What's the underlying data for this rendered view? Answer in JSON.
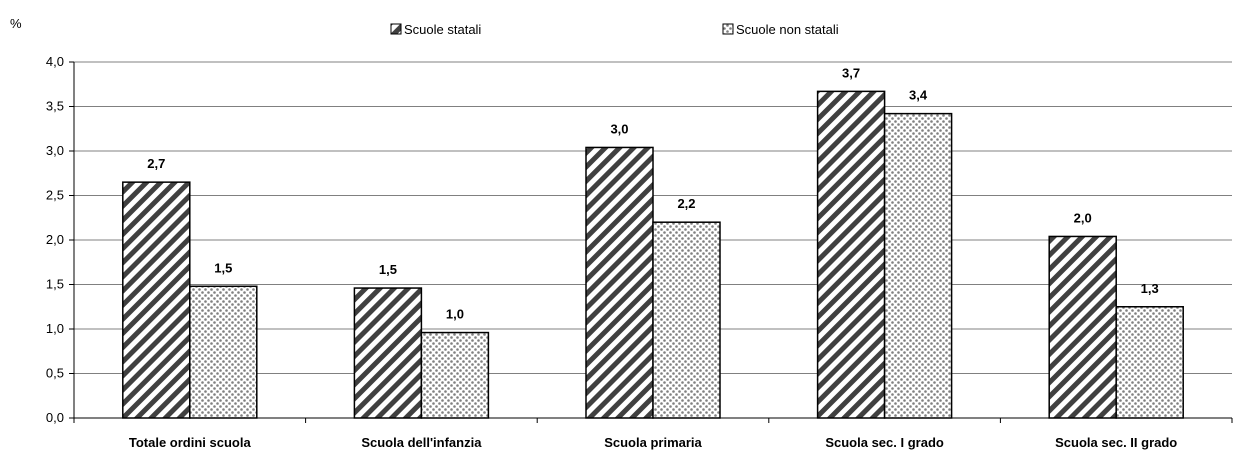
{
  "chart_data": {
    "type": "bar",
    "ylabel": "%",
    "xlabel": "",
    "ylim": [
      0,
      4
    ],
    "y_ticks": [
      "0,0",
      "0,5",
      "1,0",
      "1,5",
      "2,0",
      "2,5",
      "3,0",
      "3,5",
      "4,0"
    ],
    "y_tick_values": [
      0,
      0.5,
      1,
      1.5,
      2,
      2.5,
      3,
      3.5,
      4
    ],
    "grid": true,
    "legend_position": "top-center",
    "categories": [
      "Totale ordini scuola",
      "Scuola dell'infanzia",
      "Scuola primaria",
      "Scuola sec. I grado",
      "Scuola sec. II grado"
    ],
    "series": [
      {
        "name": "Scuole statali",
        "pattern": "diagonal-hatch",
        "values": [
          2.65,
          1.46,
          3.04,
          3.67,
          2.04
        ],
        "labels": [
          "2,7",
          "1,5",
          "3,0",
          "3,7",
          "2,0"
        ]
      },
      {
        "name": "Scuole non statali",
        "pattern": "dotted",
        "values": [
          1.48,
          0.96,
          2.2,
          3.42,
          1.25
        ],
        "labels": [
          "1,5",
          "1,0",
          "2,2",
          "3,4",
          "1,3"
        ]
      }
    ],
    "colors": {
      "axis": "#000000",
      "grid": "#808080",
      "bar_stroke": "#000000",
      "hatch": "#404040",
      "dots": "#808080",
      "background": "#ffffff"
    }
  }
}
